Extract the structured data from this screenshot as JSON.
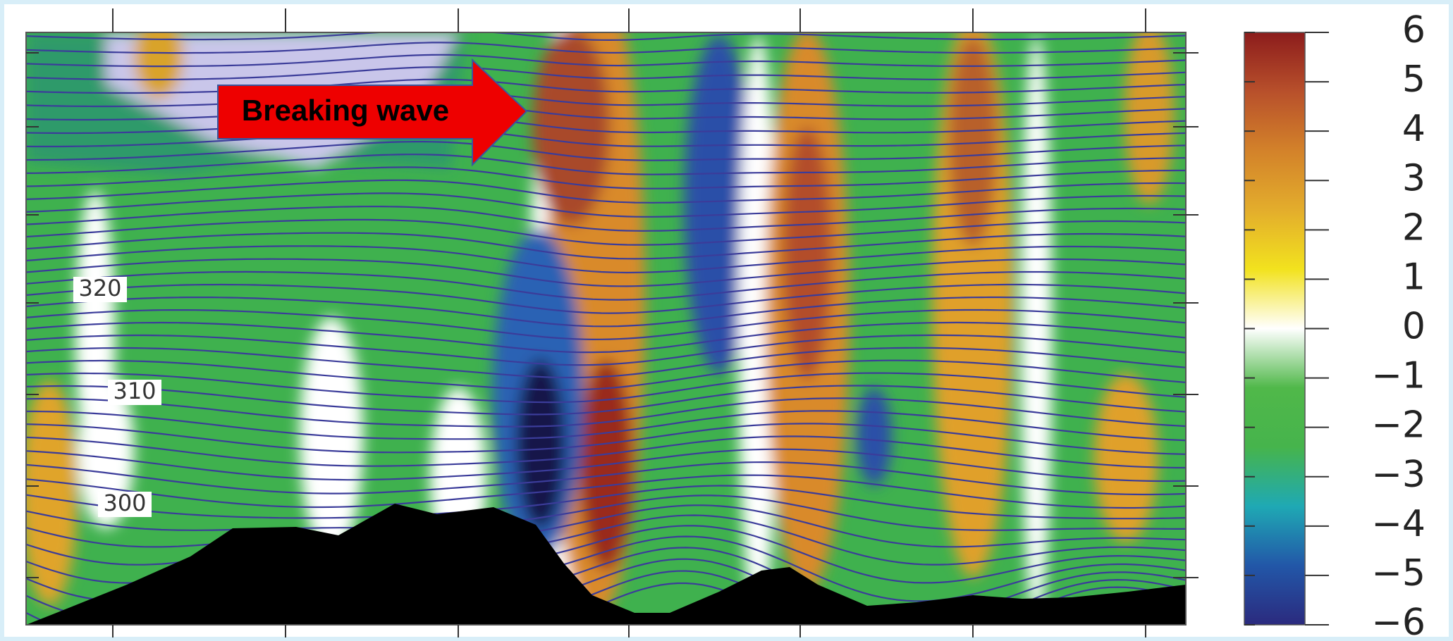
{
  "chart_data": {
    "type": "contour",
    "annotation": "Breaking wave",
    "contour_labels": [
      320,
      310,
      300
    ],
    "colorbar": {
      "clim": [
        -6,
        6
      ],
      "ticks": [
        6,
        5,
        4,
        3,
        2,
        1,
        0,
        {
          "value": -1,
          "label": "−1"
        },
        {
          "value": -2,
          "label": "−2"
        },
        {
          "value": -3,
          "label": "−3"
        },
        {
          "value": -4,
          "label": "−4"
        },
        {
          "value": -5,
          "label": "−5"
        },
        {
          "value": -6,
          "label": "−6"
        }
      ],
      "colors": [
        "#2b2a7e",
        "#2257a8",
        "#1fa9b4",
        "#46b44c",
        "#50b84a",
        "#ffffff",
        "#f2e21e",
        "#e3ad2c",
        "#d3822a",
        "#b8502b",
        "#8c1c1c"
      ]
    }
  }
}
